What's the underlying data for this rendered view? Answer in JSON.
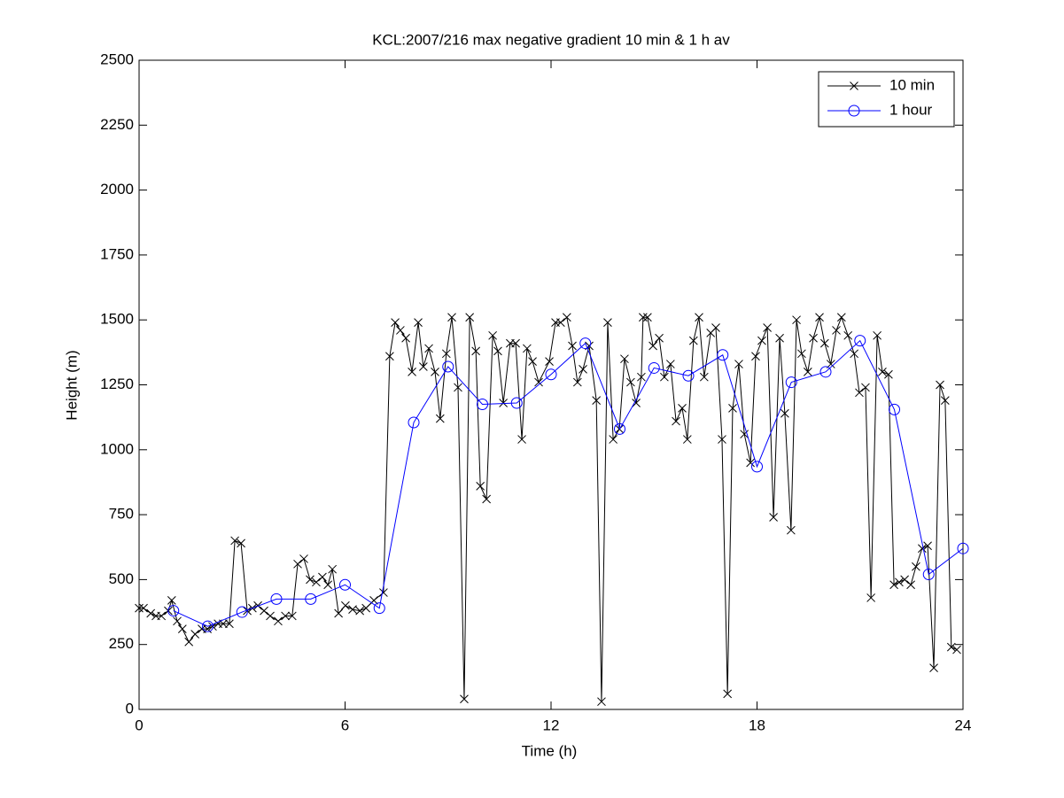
{
  "chart_data": {
    "type": "line",
    "title": "KCL:2007/216 max negative gradient 10 min & 1 h av",
    "xlabel": "Time (h)",
    "ylabel": "Height (m)",
    "xlim": [
      0,
      24
    ],
    "xticks": [
      0,
      6,
      12,
      18,
      24
    ],
    "ylim": [
      0,
      2500
    ],
    "yticks": [
      0,
      250,
      500,
      750,
      1000,
      1250,
      1500,
      1750,
      2000,
      2250,
      2500
    ],
    "legend": "northeast",
    "grid": false,
    "series": [
      {
        "name": "10 min",
        "color": "#000000",
        "marker": "x",
        "x": [
          0,
          0.13,
          0.34,
          0.49,
          0.65,
          0.85,
          0.95,
          1.11,
          1.26,
          1.45,
          1.63,
          1.83,
          1.99,
          2.14,
          2.3,
          2.45,
          2.63,
          2.79,
          2.97,
          3.15,
          3.3,
          3.46,
          3.64,
          3.82,
          4.05,
          4.26,
          4.46,
          4.62,
          4.8,
          4.98,
          5.16,
          5.34,
          5.5,
          5.63,
          5.81,
          6.01,
          6.22,
          6.43,
          6.61,
          6.84,
          7.12,
          7.3,
          7.46,
          7.61,
          7.77,
          7.95,
          8.13,
          8.28,
          8.44,
          8.62,
          8.77,
          8.95,
          9.11,
          9.29,
          9.47,
          9.63,
          9.81,
          9.94,
          10.12,
          10.3,
          10.45,
          10.61,
          10.81,
          10.97,
          11.15,
          11.3,
          11.46,
          11.64,
          11.95,
          12.13,
          12.28,
          12.46,
          12.62,
          12.77,
          12.93,
          13.11,
          13.32,
          13.47,
          13.65,
          13.81,
          13.99,
          14.14,
          14.32,
          14.48,
          14.63,
          14.68,
          14.81,
          14.97,
          15.15,
          15.3,
          15.48,
          15.64,
          15.82,
          15.97,
          16.15,
          16.31,
          16.46,
          16.65,
          16.8,
          16.98,
          17.14,
          17.29,
          17.47,
          17.63,
          17.81,
          17.96,
          18.14,
          18.3,
          18.48,
          18.66,
          18.81,
          18.99,
          19.15,
          19.3,
          19.48,
          19.64,
          19.82,
          19.97,
          20.15,
          20.31,
          20.46,
          20.65,
          20.83,
          20.98,
          21.16,
          21.32,
          21.5,
          21.65,
          21.83,
          21.99,
          22.14,
          22.3,
          22.48,
          22.63,
          22.81,
          22.97,
          23.15,
          23.33,
          23.48,
          23.66,
          23.82
        ],
        "values": [
          390,
          390,
          370,
          360,
          360,
          380,
          420,
          340,
          310,
          260,
          290,
          310,
          310,
          320,
          330,
          330,
          330,
          650,
          640,
          380,
          390,
          400,
          380,
          360,
          340,
          360,
          360,
          560,
          580,
          500,
          490,
          510,
          480,
          540,
          370,
          400,
          385,
          380,
          390,
          420,
          450,
          1360,
          1490,
          1460,
          1430,
          1300,
          1490,
          1320,
          1390,
          1300,
          1120,
          1370,
          1510,
          1240,
          40,
          1510,
          1380,
          860,
          810,
          1440,
          1380,
          1180,
          1410,
          1410,
          1040,
          1390,
          1340,
          1260,
          1340,
          1490,
          1490,
          1510,
          1400,
          1260,
          1310,
          1400,
          1190,
          30,
          1490,
          1040,
          1080,
          1350,
          1260,
          1180,
          1280,
          1510,
          1510,
          1400,
          1430,
          1280,
          1330,
          1110,
          1160,
          1040,
          1420,
          1510,
          1280,
          1450,
          1470,
          1040,
          60,
          1160,
          1330,
          1060,
          950,
          1360,
          1420,
          1470,
          740,
          1430,
          1140,
          690,
          1500,
          1370,
          1300,
          1430,
          1510,
          1410,
          1330,
          1460,
          1510,
          1440,
          1370,
          1220,
          1240,
          430,
          1440,
          1300,
          1290,
          480,
          490,
          500,
          480,
          550,
          620,
          630,
          160,
          1250,
          1190,
          240,
          230
        ]
      },
      {
        "name": "1 hour",
        "color": "#0000ff",
        "marker": "o",
        "x": [
          1,
          2,
          3,
          4,
          5,
          6,
          7,
          8,
          9,
          10,
          11,
          12,
          13,
          14,
          15,
          16,
          17,
          18,
          19,
          20,
          21,
          22,
          23,
          24
        ],
        "values": [
          380,
          320,
          375,
          425,
          425,
          480,
          390,
          1105,
          1320,
          1175,
          1180,
          1290,
          1410,
          1080,
          1315,
          1285,
          1365,
          935,
          1260,
          1300,
          1420,
          1155,
          520,
          620
        ]
      }
    ]
  }
}
